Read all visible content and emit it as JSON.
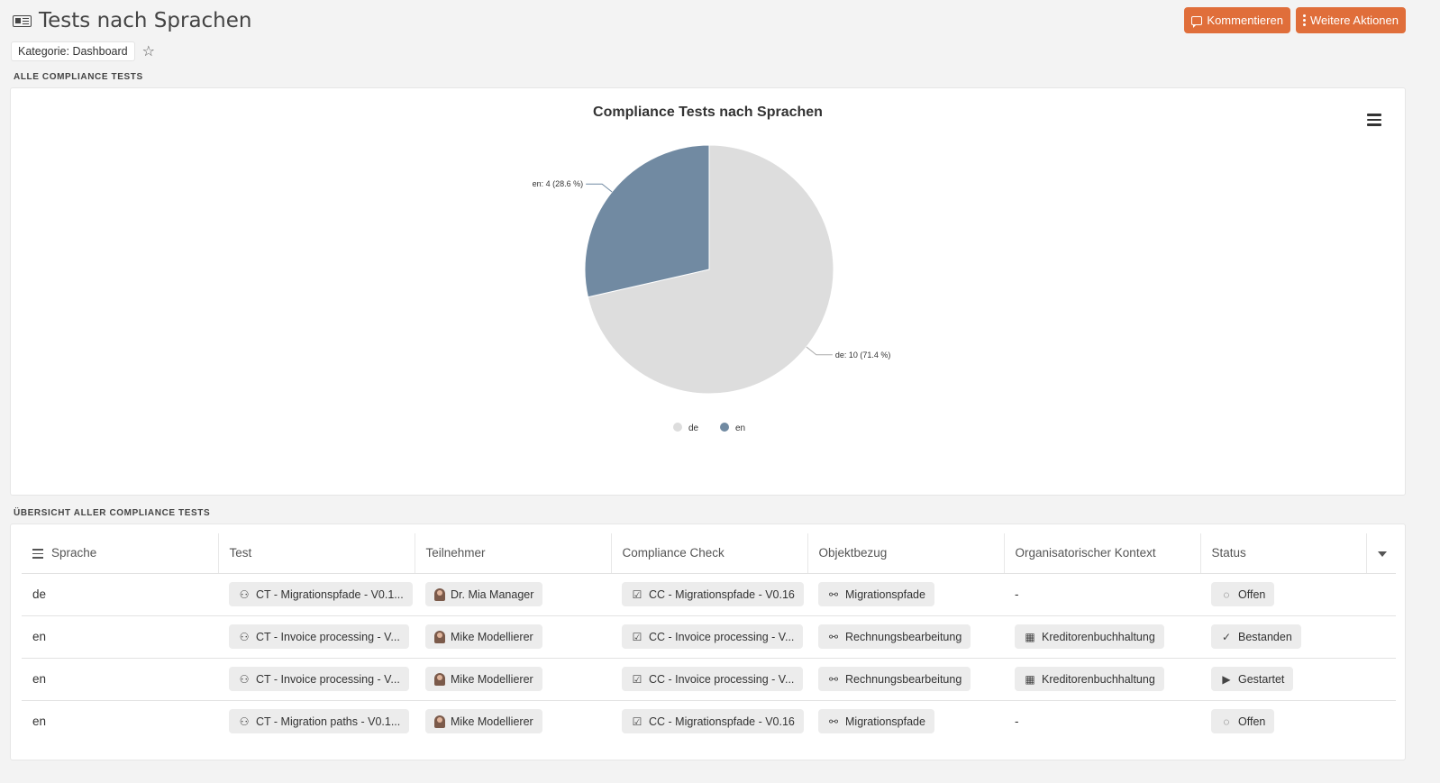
{
  "header": {
    "title": "Tests nach Sprachen",
    "comment_btn": "Kommentieren",
    "more_btn": "Weitere Aktionen"
  },
  "category": {
    "label": "Kategorie: Dashboard"
  },
  "sections": {
    "chart_label": "ALLE COMPLIANCE TESTS",
    "table_label": "ÜBERSICHT ALLER COMPLIANCE TESTS"
  },
  "chart_data": {
    "type": "pie",
    "title": "Compliance Tests nach Sprachen",
    "slices": [
      {
        "label": "de",
        "value": 10,
        "percent": 71.4,
        "color": "#dddddd",
        "data_label": "de: 10 (71.4 %)"
      },
      {
        "label": "en",
        "value": 4,
        "percent": 28.6,
        "color": "#718aa2",
        "data_label": "en: 4 (28.6 %)"
      }
    ],
    "legend": [
      "de",
      "en"
    ],
    "legend_position": "bottom-center"
  },
  "table": {
    "columns": [
      "Sprache",
      "Test",
      "Teilnehmer",
      "Compliance Check",
      "Objektbezug",
      "Organisatorischer Kontext",
      "Status"
    ],
    "rows": [
      {
        "sprache": "de",
        "test": "CT - Migrationspfade - V0.1...",
        "teilnehmer": "Dr. Mia Manager",
        "check": "CC - Migrationspfade - V0.16",
        "objekt": "Migrationspfade",
        "kontext": "-",
        "status": "Offen",
        "status_icon": "open"
      },
      {
        "sprache": "en",
        "test": "CT - Invoice processing - V...",
        "teilnehmer": "Mike Modellierer",
        "check": "CC - Invoice processing - V...",
        "objekt": "Rechnungsbearbeitung",
        "kontext": "Kreditorenbuchhaltung",
        "status": "Bestanden",
        "status_icon": "passed"
      },
      {
        "sprache": "en",
        "test": "CT - Invoice processing - V...",
        "teilnehmer": "Mike Modellierer",
        "check": "CC - Invoice processing - V...",
        "objekt": "Rechnungsbearbeitung",
        "kontext": "Kreditorenbuchhaltung",
        "status": "Gestartet",
        "status_icon": "started"
      },
      {
        "sprache": "en",
        "test": "CT - Migration paths - V0.1...",
        "teilnehmer": "Mike Modellierer",
        "check": "CC - Migrationspfade - V0.16",
        "objekt": "Migrationspfade",
        "kontext": "-",
        "status": "Offen",
        "status_icon": "open"
      }
    ]
  }
}
